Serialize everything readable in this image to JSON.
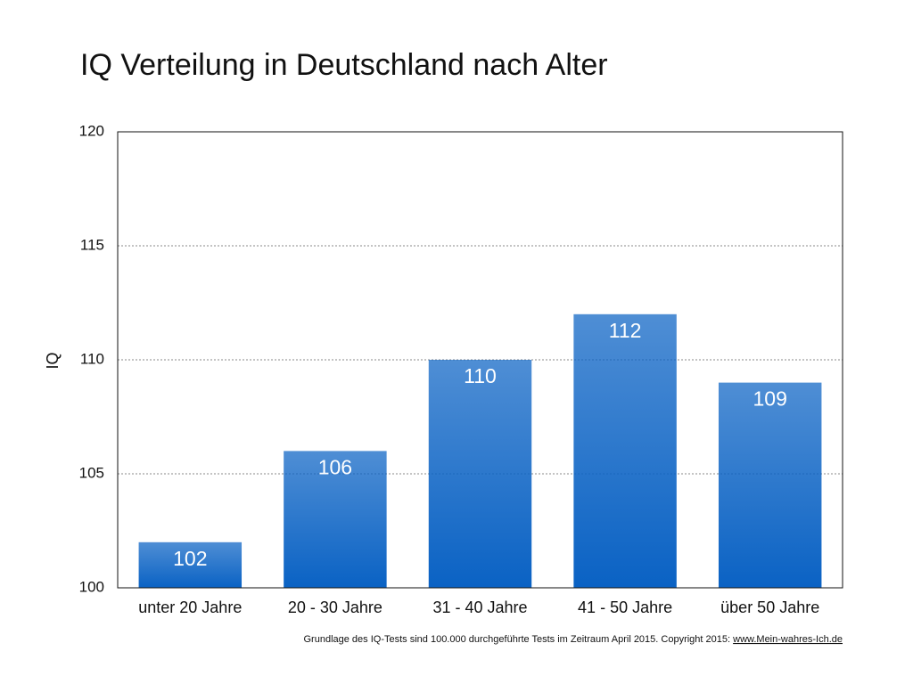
{
  "chart_data": {
    "type": "bar",
    "title": "IQ Verteilung in Deutschland nach Alter",
    "ylabel": "IQ",
    "categories": [
      "unter 20 Jahre",
      "20 - 30 Jahre",
      "31 - 40 Jahre",
      "41 - 50 Jahre",
      "über 50 Jahre"
    ],
    "values": [
      102,
      106,
      110,
      112,
      109
    ],
    "color": "#0a62c4",
    "ylim": [
      100,
      120
    ],
    "yticks": [
      100,
      105,
      110,
      115,
      120
    ],
    "grid": true,
    "note": "Grundlage des IQ-Tests sind 100.000 durchgeführte Tests im Zeitraum April 2015. Copyright 2015: ",
    "source": "www.Mein-wahres-Ich.de"
  }
}
